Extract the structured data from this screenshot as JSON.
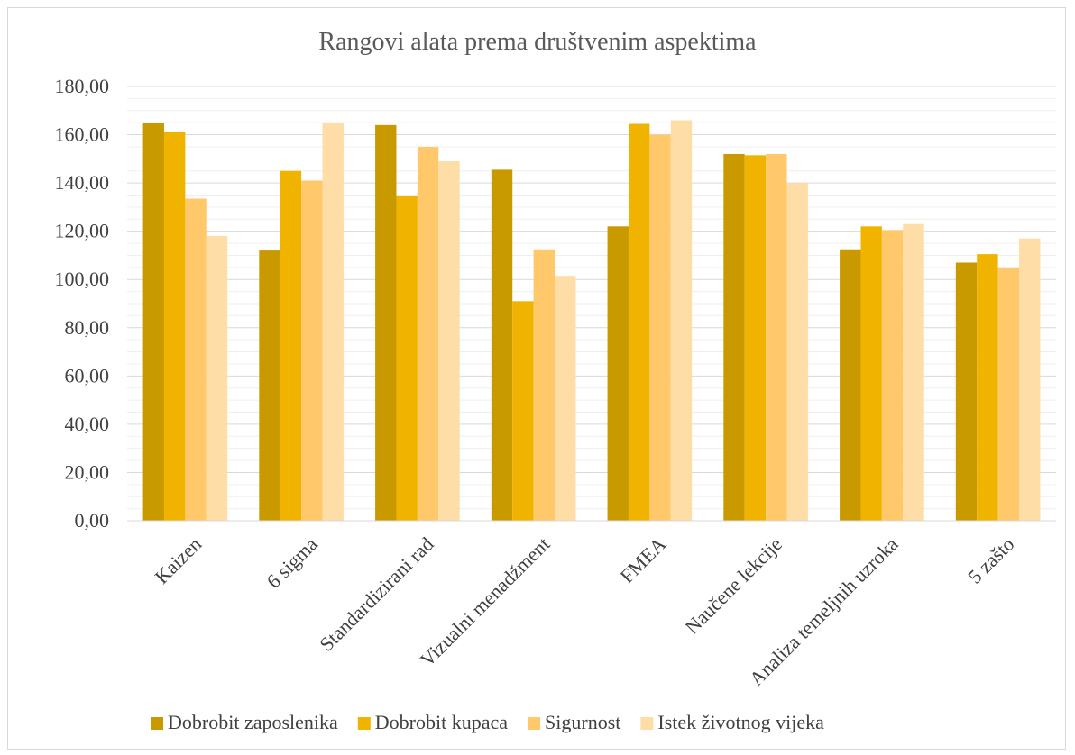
{
  "chart_data": {
    "type": "bar",
    "title": "Rangovi alata prema društvenim aspektima",
    "xlabel": "",
    "ylabel": "",
    "ylim": [
      0,
      180
    ],
    "y_ticks": [
      "0,00",
      "20,00",
      "40,00",
      "60,00",
      "80,00",
      "100,00",
      "120,00",
      "140,00",
      "160,00",
      "180,00"
    ],
    "grid": true,
    "legend_position": "bottom",
    "categories": [
      "Kaizen",
      "6 sigma",
      "Standardizirani rad",
      "Vizualni menadžment",
      "FMEA",
      "Naučene lekcije",
      "Analiza temeljnih uzroka",
      "5 zašto"
    ],
    "series": [
      {
        "name": "Dobrobit zaposlenika",
        "color": "#C99A00",
        "values": [
          165,
          112,
          164,
          145.5,
          122,
          152,
          112.5,
          107
        ]
      },
      {
        "name": "Dobrobit kupaca",
        "color": "#F0B400",
        "values": [
          161,
          145,
          134.5,
          91,
          164.5,
          151.5,
          122,
          110.5
        ]
      },
      {
        "name": "Sigurnost",
        "color": "#FFC96B",
        "values": [
          133.5,
          141,
          155,
          112.5,
          160,
          152,
          120.5,
          105
        ]
      },
      {
        "name": "Istek životnog vijeka",
        "color": "#FFDDA6",
        "values": [
          118,
          165,
          149,
          101.5,
          166,
          140,
          123,
          117
        ]
      }
    ]
  }
}
